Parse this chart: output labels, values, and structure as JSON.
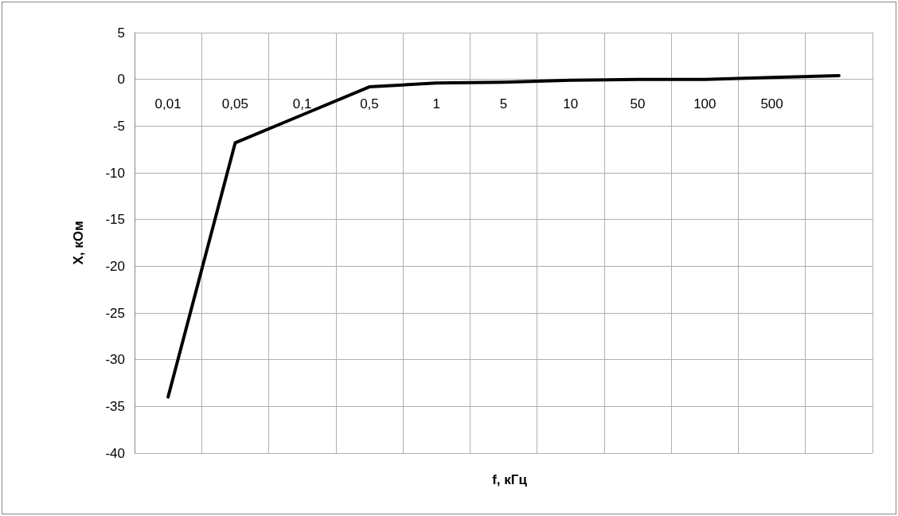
{
  "chart_data": {
    "type": "line",
    "xlabel": "f, кГц",
    "ylabel": "X, кОм",
    "categories": [
      "0,01",
      "0,05",
      "0,1",
      "0,5",
      "1",
      "5",
      "10",
      "50",
      "100",
      "500",
      null
    ],
    "series": [
      {
        "color": "#000000",
        "values": [
          -34,
          -6.8,
          -3.8,
          -0.8,
          -0.4,
          -0.3,
          -0.1,
          0,
          0,
          0.2,
          0.4
        ]
      }
    ],
    "ylim": [
      -40,
      5
    ],
    "yticks": [
      -40,
      -35,
      -30,
      -25,
      -20,
      -15,
      -10,
      -5,
      0,
      5
    ],
    "grid": true,
    "marker": "none",
    "line_style": "solid"
  }
}
